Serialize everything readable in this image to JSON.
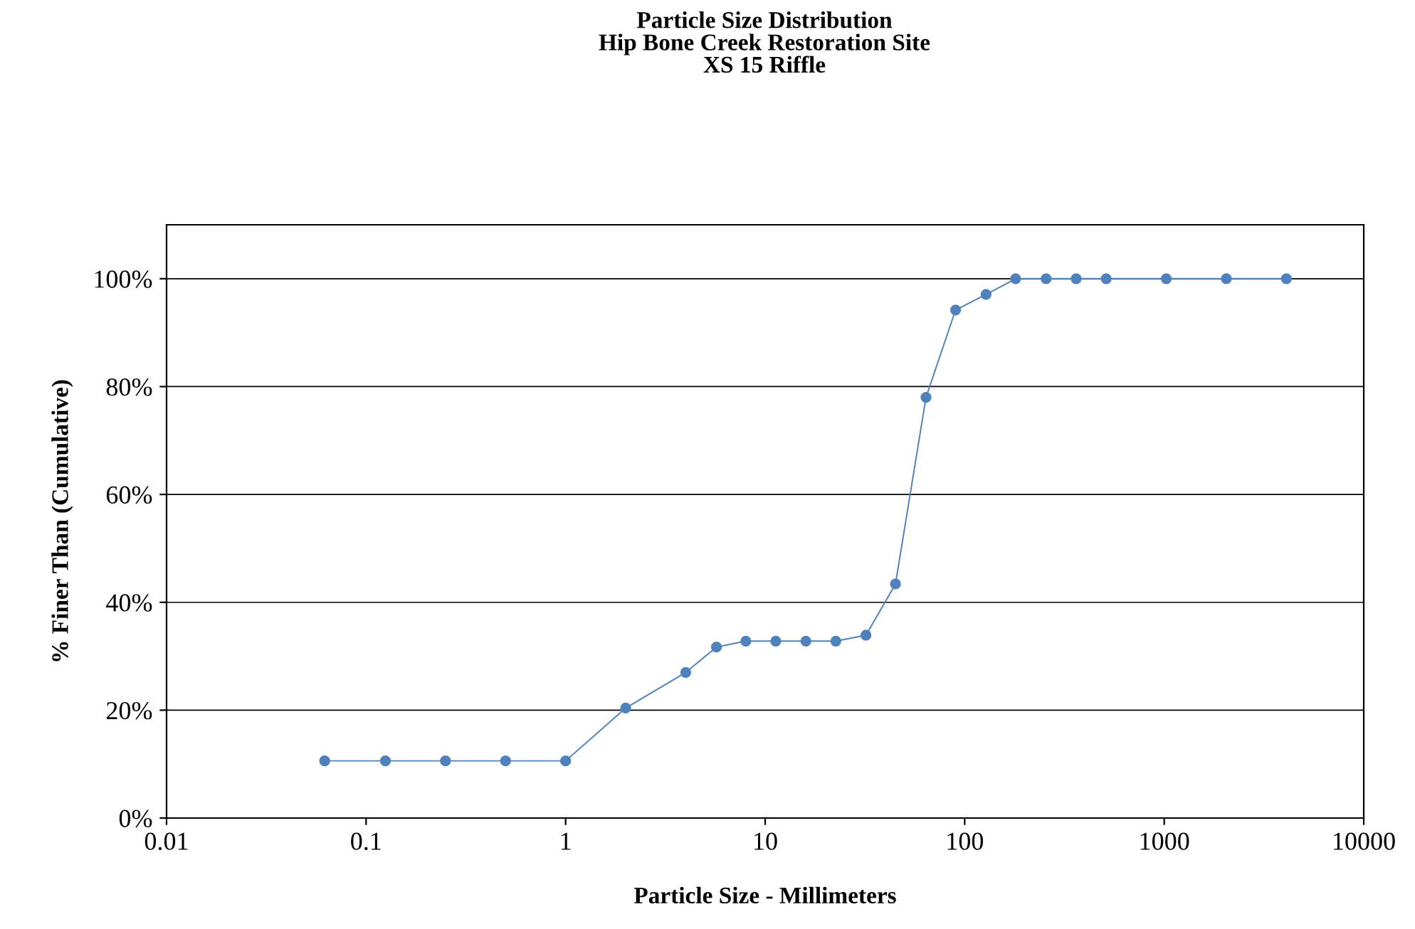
{
  "chart_data": {
    "type": "line",
    "title": "Particle Size Distribution\nHip Bone Creek Restoration Site\nXS 15 Riffle",
    "xlabel": "Particle Size - Millimeters",
    "ylabel": "% Finer Than (Cumulative)",
    "log": "x",
    "xlim": [
      0.01,
      10000
    ],
    "xticks": [
      0.01,
      0.1,
      1,
      10,
      100,
      1000,
      10000
    ],
    "ylim": [
      0,
      110
    ],
    "yticks": [
      {
        "value": 0,
        "label": "0%"
      },
      {
        "value": 20,
        "label": "20%"
      },
      {
        "value": 40,
        "label": "40%"
      },
      {
        "value": 60,
        "label": "60%"
      },
      {
        "value": 80,
        "label": "80%"
      },
      {
        "value": 100,
        "label": "100%"
      }
    ],
    "grid": "y",
    "marker": "circle",
    "line_style": "solid",
    "series": [
      {
        "color": "#4f81bd",
        "x": [
          0.062,
          0.125,
          0.25,
          0.5,
          1,
          2,
          4,
          5.7,
          8,
          11.3,
          16,
          22.6,
          32,
          45,
          64,
          90,
          128,
          180,
          256,
          362,
          512,
          1024,
          2048,
          4096
        ],
        "values": [
          10.6,
          10.6,
          10.6,
          10.6,
          10.6,
          20.4,
          27,
          31.7,
          32.8,
          32.8,
          32.8,
          32.8,
          33.9,
          43.4,
          78,
          94.2,
          97.1,
          100,
          100,
          100,
          100,
          100,
          100,
          100
        ]
      }
    ]
  }
}
